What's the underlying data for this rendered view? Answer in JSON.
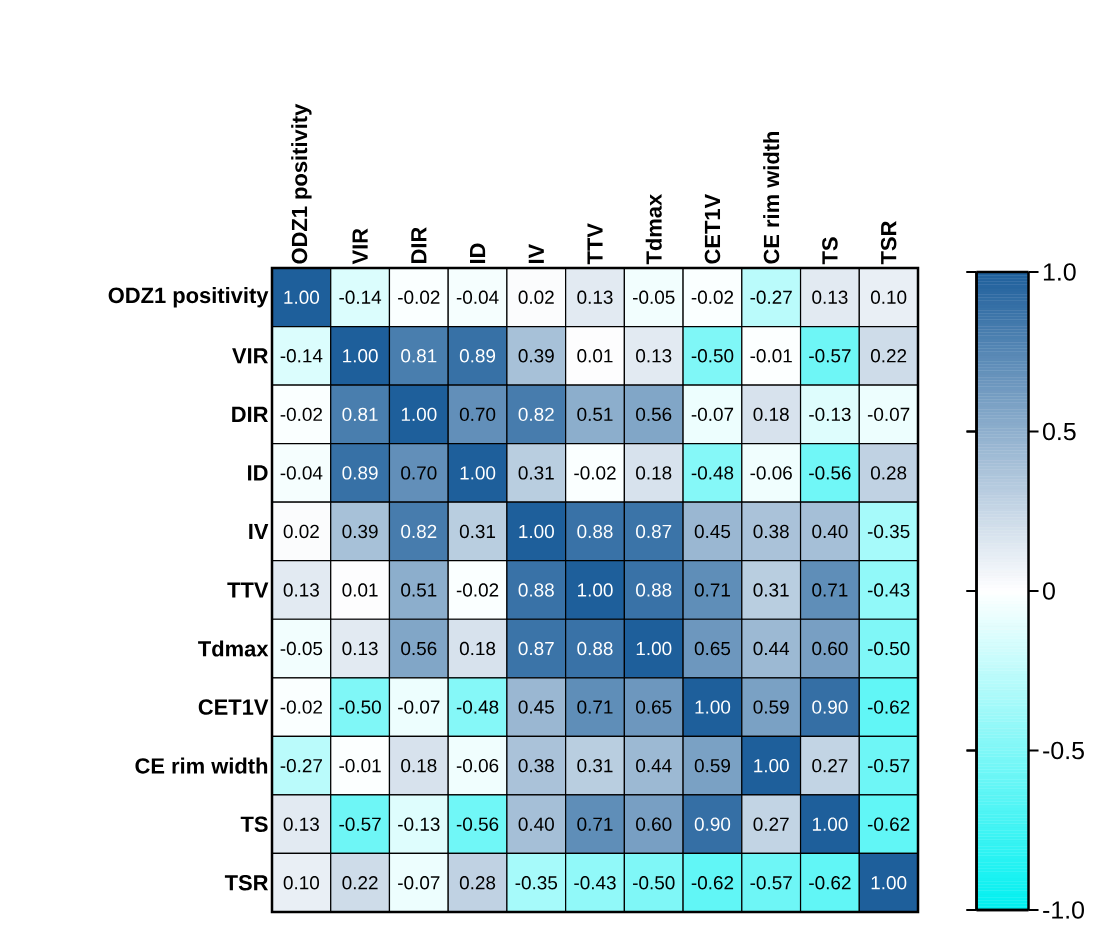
{
  "chart_data": {
    "type": "heatmap",
    "categories": [
      "ODZ1 positivity",
      "VIR",
      "DIR",
      "ID",
      "IV",
      "TTV",
      "Tdmax",
      "CET1V",
      "CE rim width",
      "TS",
      "TSR"
    ],
    "y_categories": [
      "ODZ1 positivity",
      "VIR",
      "DIR",
      "ID",
      "IV",
      "TTV",
      "Tdmax",
      "CET1V",
      "CE rim width",
      "TS",
      "TSR"
    ],
    "cells": [
      [
        1.0,
        -0.14,
        -0.02,
        -0.04,
        0.02,
        0.13,
        -0.05,
        -0.02,
        -0.27,
        0.13,
        0.1
      ],
      [
        -0.14,
        1.0,
        0.81,
        0.89,
        0.39,
        0.01,
        0.13,
        -0.5,
        -0.01,
        -0.57,
        0.22
      ],
      [
        -0.02,
        0.81,
        1.0,
        0.7,
        0.82,
        0.51,
        0.56,
        -0.07,
        0.18,
        -0.13,
        -0.07
      ],
      [
        -0.04,
        0.89,
        0.7,
        1.0,
        0.31,
        -0.02,
        0.18,
        -0.48,
        -0.06,
        -0.56,
        0.28
      ],
      [
        0.02,
        0.39,
        0.82,
        0.31,
        1.0,
        0.88,
        0.87,
        0.45,
        0.38,
        0.4,
        -0.35
      ],
      [
        0.13,
        0.01,
        0.51,
        -0.02,
        0.88,
        1.0,
        0.88,
        0.71,
        0.31,
        0.71,
        -0.43
      ],
      [
        -0.05,
        0.13,
        0.56,
        0.18,
        0.87,
        0.88,
        1.0,
        0.65,
        0.44,
        0.6,
        -0.5
      ],
      [
        -0.02,
        -0.5,
        -0.07,
        -0.48,
        0.45,
        0.71,
        0.65,
        1.0,
        0.59,
        0.9,
        -0.62
      ],
      [
        -0.27,
        -0.01,
        0.18,
        -0.06,
        0.38,
        0.31,
        0.44,
        0.59,
        1.0,
        0.27,
        -0.57
      ],
      [
        0.13,
        -0.57,
        -0.13,
        -0.56,
        0.4,
        0.71,
        0.6,
        0.9,
        0.27,
        1.0,
        -0.62
      ],
      [
        0.1,
        0.22,
        -0.07,
        0.28,
        -0.35,
        -0.43,
        -0.5,
        -0.62,
        -0.57,
        -0.62,
        1.0
      ]
    ],
    "cell_labels": [
      [
        "1.00",
        "-0.14",
        "-0.02",
        "-0.04",
        "0.02",
        "0.13",
        "-0.05",
        "-0.02",
        "-0.27",
        "0.13",
        "0.10"
      ],
      [
        "-0.14",
        "1.00",
        "0.81",
        "0.89",
        "0.39",
        "0.01",
        "0.13",
        "-0.50",
        "-0.01",
        "-0.57",
        "0.22"
      ],
      [
        "-0.02",
        "0.81",
        "1.00",
        "0.70",
        "0.82",
        "0.51",
        "0.56",
        "-0.07",
        "0.18",
        "-0.13",
        "-0.07"
      ],
      [
        "-0.04",
        "0.89",
        "0.70",
        "1.00",
        "0.31",
        "-0.02",
        "0.18",
        "-0.48",
        "-0.06",
        "-0.56",
        "0.28"
      ],
      [
        "0.02",
        "0.39",
        "0.82",
        "0.31",
        "1.00",
        "0.88",
        "0.87",
        "0.45",
        "0.38",
        "0.40",
        "-0.35"
      ],
      [
        "0.13",
        "0.01",
        "0.51",
        "-0.02",
        "0.88",
        "1.00",
        "0.88",
        "0.71",
        "0.31",
        "0.71",
        "-0.43"
      ],
      [
        "-0.05",
        "0.13",
        "0.56",
        "0.18",
        "0.87",
        "0.88",
        "1.00",
        "0.65",
        "0.44",
        "0.60",
        "-0.50"
      ],
      [
        "-0.02",
        "-0.50",
        "-0.07",
        "-0.48",
        "0.45",
        "0.71",
        "0.65",
        "1.00",
        "0.59",
        "0.90",
        "-0.62"
      ],
      [
        "-0.27",
        "-0.01",
        "0.18",
        "-0.06",
        "0.38",
        "0.31",
        "0.44",
        "0.59",
        "1.00",
        "0.27",
        "-0.57"
      ],
      [
        "0.13",
        "-0.57",
        "-0.13",
        "-0.56",
        "0.40",
        "0.71",
        "0.60",
        "0.90",
        "0.27",
        "1.00",
        "-0.62"
      ],
      [
        "0.10",
        "0.22",
        "-0.07",
        "0.28",
        "-0.35",
        "-0.43",
        "-0.50",
        "-0.62",
        "-0.57",
        "-0.62",
        "1.00"
      ]
    ],
    "clim": [
      -1,
      1
    ],
    "cticks": [
      {
        "value": 1,
        "label": "1.0"
      },
      {
        "value": 0.5,
        "label": "0.5"
      },
      {
        "value": 0,
        "label": "0"
      },
      {
        "value": -0.5,
        "label": "-0.5"
      },
      {
        "value": -1,
        "label": "-1.0"
      }
    ]
  }
}
